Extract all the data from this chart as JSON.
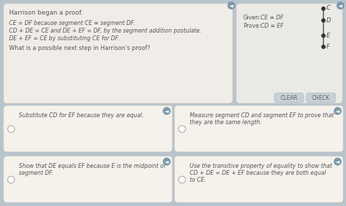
{
  "bg_color": "#b8c4cc",
  "main_panel_bg": "#f0ede8",
  "right_panel_bg": "#eceae6",
  "answer_panel_bg": "#f5f2ec",
  "title": "Harrison began a proof.",
  "proof_line1": "CE = DF because segment CE ≅ segment DF.",
  "proof_line2": "CD + DE = CE and DE + EF = DF, by the segment addition postulate.",
  "proof_line3": "DE + EF = CE by substituting CE for DF.",
  "question": "What is a possible next step in Harrison’s proof?",
  "given_label": "Given:",
  "given_math": "CE ≅ DF",
  "prove_label": "Prove:",
  "prove_math": "CD ≅ EF",
  "diagram_labels": [
    "C",
    "D",
    "E",
    "F"
  ],
  "answer1": "Substitute CD for EF because they are equal.",
  "answer2a": "Measure segment CD and segment EF to prove that",
  "answer2b": "they are the same length.",
  "answer3a": "Show that DE equals EF because E is the midpoint of",
  "answer3b": "segment DF.",
  "answer4a": "Use the transitive property of equality to show that",
  "answer4b": "CD + DE = DE + EF because they are both equal",
  "answer4c": "to CE.",
  "button_clear": "CLEAR",
  "button_check": "CHECK",
  "speaker_color": "#7a9aaa",
  "text_color": "#555555",
  "panel_border": "#d0ccc4",
  "radio_color": "#cccccc",
  "button_bg": "#c8d0d8",
  "button_text": "#666666"
}
